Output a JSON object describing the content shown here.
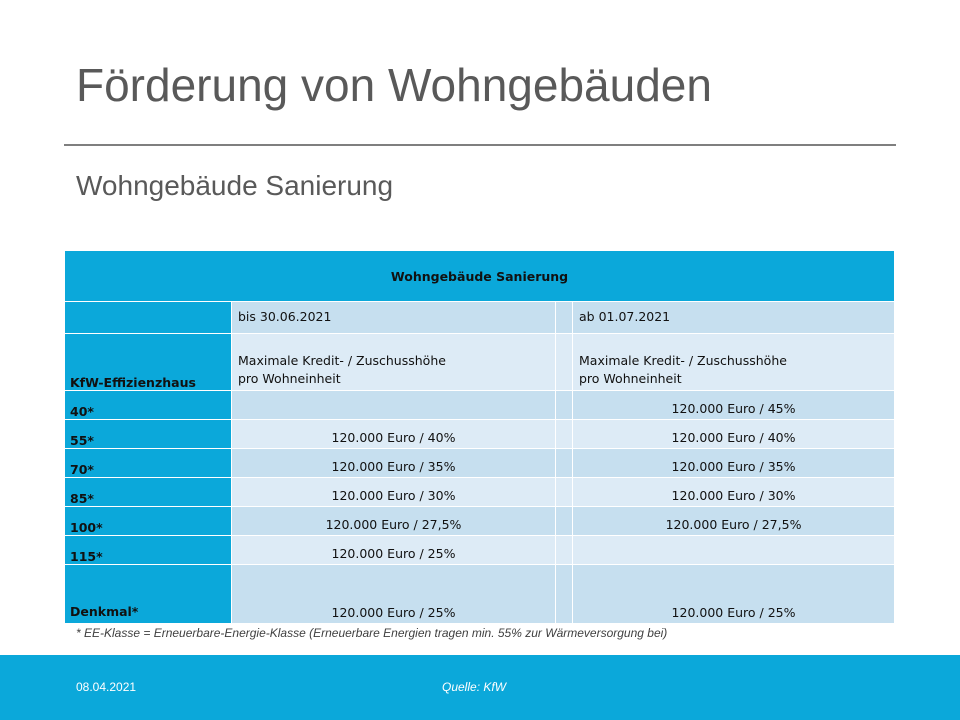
{
  "slide": {
    "title": "Förderung von Wohngebäuden",
    "subtitle": "Wohngebäude Sanierung"
  },
  "table": {
    "header": "Wohngebäude Sanierung",
    "period_before": "bis 30.06.2021",
    "period_after": "ab 01.07.2021",
    "label_column_header": "KfW-Effizienzhaus",
    "description_line1": "Maximale Kredit- / Zuschusshöhe",
    "description_line2": "pro Wohneinheit",
    "rows": [
      {
        "label": "40*",
        "before": "",
        "after": "120.000 Euro / 45%"
      },
      {
        "label": "55*",
        "before": "120.000 Euro / 40%",
        "after": "120.000 Euro / 40%"
      },
      {
        "label": "70*",
        "before": "120.000 Euro / 35%",
        "after": "120.000 Euro / 35%"
      },
      {
        "label": "85*",
        "before": "120.000 Euro / 30%",
        "after": "120.000 Euro / 30%"
      },
      {
        "label": "100*",
        "before": "120.000 Euro / 27,5%",
        "after": "120.000 Euro / 27,5%"
      },
      {
        "label": "115*",
        "before": "120.000 Euro / 25%",
        "after": ""
      },
      {
        "label": "Denkmal*",
        "before": "120.000 Euro / 25%",
        "after": "120.000 Euro / 25%"
      }
    ]
  },
  "footnote": "*    EE-Klasse = Erneuerbare-Energie-Klasse (Erneuerbare Energien tragen min. 55% zur Wärmeversorgung bei)",
  "footer": {
    "date": "08.04.2021",
    "source": "Quelle: KfW"
  }
}
